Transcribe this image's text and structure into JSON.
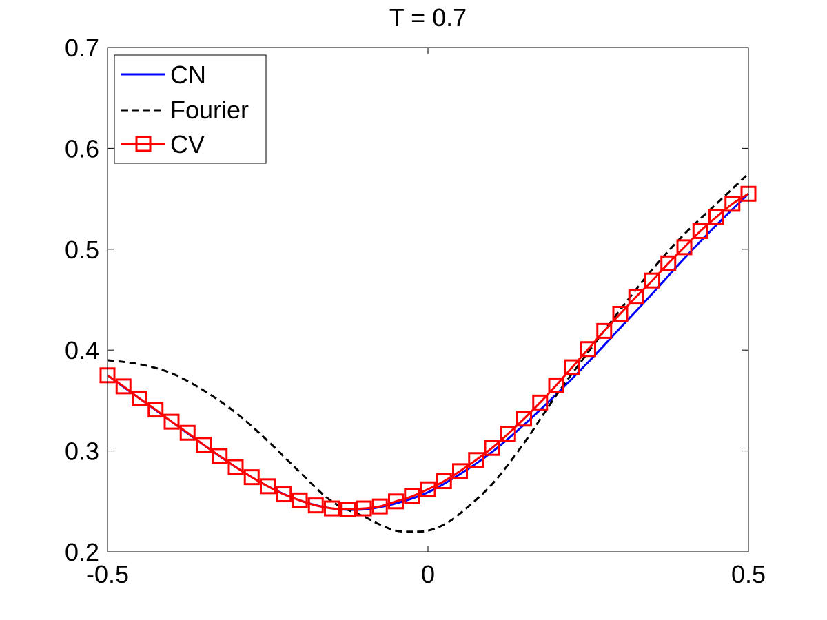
{
  "chart_data": {
    "type": "line",
    "title": "T = 0.7",
    "xlabel": "",
    "ylabel": "",
    "xlim": [
      -0.5,
      0.5
    ],
    "ylim": [
      0.2,
      0.7
    ],
    "xticks": [
      -0.5,
      0,
      0.5
    ],
    "xtick_labels": [
      "-0.5",
      "0",
      "0.5"
    ],
    "yticks": [
      0.2,
      0.3,
      0.4,
      0.5,
      0.6,
      0.7
    ],
    "ytick_labels": [
      "0.2",
      "0.3",
      "0.4",
      "0.5",
      "0.6",
      "0.7"
    ],
    "grid": false,
    "legend_position": "top-left",
    "series": [
      {
        "name": "CN",
        "color": "#0000ff",
        "style": "solid",
        "x": [
          -0.5,
          -0.45,
          -0.4,
          -0.35,
          -0.3,
          -0.25,
          -0.2,
          -0.15,
          -0.1,
          -0.05,
          0,
          0.05,
          0.1,
          0.15,
          0.2,
          0.25,
          0.3,
          0.35,
          0.4,
          0.45,
          0.5
        ],
        "y": [
          0.375,
          0.352,
          0.329,
          0.306,
          0.284,
          0.265,
          0.251,
          0.243,
          0.242,
          0.248,
          0.259,
          0.277,
          0.299,
          0.326,
          0.356,
          0.388,
          0.422,
          0.456,
          0.491,
          0.524,
          0.555
        ]
      },
      {
        "name": "Fourier",
        "color": "#000000",
        "style": "dashed",
        "x": [
          -0.5,
          -0.45,
          -0.4,
          -0.35,
          -0.3,
          -0.25,
          -0.2,
          -0.15,
          -0.1,
          -0.075,
          -0.05,
          -0.025,
          0,
          0.025,
          0.05,
          0.1,
          0.15,
          0.2,
          0.25,
          0.3,
          0.35,
          0.4,
          0.45,
          0.5
        ],
        "y": [
          0.39,
          0.386,
          0.377,
          0.36,
          0.338,
          0.31,
          0.279,
          0.25,
          0.235,
          0.227,
          0.221,
          0.22,
          0.221,
          0.227,
          0.238,
          0.267,
          0.308,
          0.355,
          0.398,
          0.44,
          0.48,
          0.515,
          0.545,
          0.575
        ]
      },
      {
        "name": "CV",
        "color": "#ff0000",
        "style": "solid",
        "marker": "square",
        "x": [
          -0.5,
          -0.475,
          -0.45,
          -0.425,
          -0.4,
          -0.375,
          -0.35,
          -0.325,
          -0.3,
          -0.275,
          -0.25,
          -0.225,
          -0.2,
          -0.175,
          -0.15,
          -0.125,
          -0.1,
          -0.075,
          -0.05,
          -0.025,
          0,
          0.025,
          0.05,
          0.075,
          0.1,
          0.125,
          0.15,
          0.175,
          0.2,
          0.225,
          0.25,
          0.275,
          0.3,
          0.325,
          0.35,
          0.375,
          0.4,
          0.425,
          0.45,
          0.475,
          0.5
        ],
        "y": [
          0.375,
          0.364,
          0.352,
          0.341,
          0.329,
          0.318,
          0.306,
          0.295,
          0.284,
          0.274,
          0.265,
          0.257,
          0.251,
          0.246,
          0.243,
          0.242,
          0.243,
          0.245,
          0.25,
          0.255,
          0.262,
          0.27,
          0.28,
          0.291,
          0.303,
          0.317,
          0.332,
          0.348,
          0.365,
          0.383,
          0.401,
          0.419,
          0.436,
          0.453,
          0.469,
          0.486,
          0.502,
          0.518,
          0.532,
          0.545,
          0.555
        ]
      }
    ]
  }
}
